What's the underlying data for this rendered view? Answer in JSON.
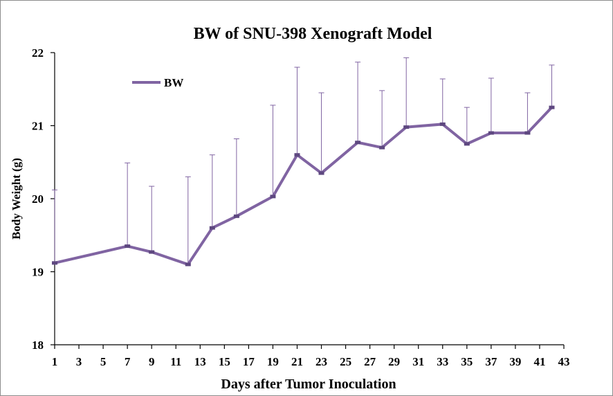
{
  "chart_data": {
    "type": "line",
    "title": "BW of SNU-398 Xenograft Model",
    "xlabel": "Days after Tumor Inoculation",
    "ylabel": "Body Weight (g)",
    "xlim": [
      1,
      43
    ],
    "ylim": [
      18,
      22
    ],
    "x_ticks": [
      1,
      3,
      5,
      7,
      9,
      11,
      13,
      15,
      17,
      19,
      21,
      23,
      25,
      27,
      29,
      31,
      33,
      35,
      37,
      39,
      41,
      43
    ],
    "y_ticks": [
      18,
      19,
      20,
      21,
      22
    ],
    "grid": false,
    "legend": "top-left",
    "series": [
      {
        "name": "BW",
        "color": "#8064a2",
        "x": [
          1,
          7,
          9,
          12,
          14,
          16,
          19,
          21,
          23,
          26,
          28,
          30,
          33,
          35,
          37,
          40,
          42
        ],
        "y": [
          19.12,
          19.35,
          19.27,
          19.1,
          19.6,
          19.76,
          20.03,
          20.6,
          20.35,
          20.77,
          20.7,
          20.98,
          21.02,
          20.75,
          20.9,
          20.9,
          21.25
        ],
        "error_upper": [
          1.0,
          1.14,
          0.9,
          1.2,
          1.0,
          1.06,
          1.25,
          1.2,
          1.1,
          1.1,
          0.78,
          0.95,
          0.62,
          0.5,
          0.75,
          0.55,
          0.58
        ]
      }
    ]
  }
}
